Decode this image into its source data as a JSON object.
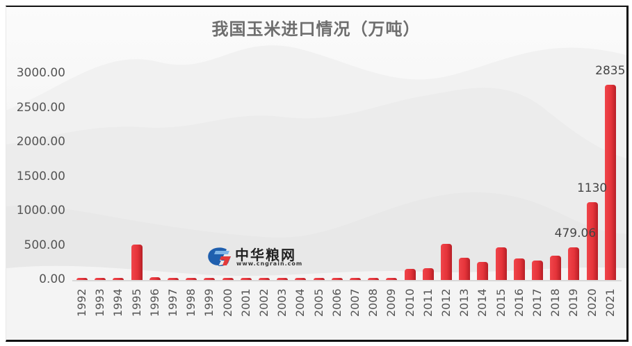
{
  "chart_data": {
    "type": "bar",
    "title": "我国玉米进口情况（万吨）",
    "xlabel": "",
    "ylabel": "",
    "ylim": [
      0,
      3000
    ],
    "yticks": [
      "3000.00",
      "2500.00",
      "2000.00",
      "1500.00",
      "1000.00",
      "500.00",
      "0.00"
    ],
    "grid": false,
    "legend": null,
    "categories": [
      "1992",
      "1993",
      "1994",
      "1995",
      "1996",
      "1997",
      "1998",
      "1999",
      "2000",
      "2001",
      "2002",
      "2003",
      "2004",
      "2005",
      "2006",
      "2007",
      "2008",
      "2009",
      "2010",
      "2011",
      "2012",
      "2013",
      "2014",
      "2015",
      "2016",
      "2017",
      "2018",
      "2019",
      "2020",
      "2021"
    ],
    "values": [
      0,
      0,
      0,
      518,
      44,
      0,
      25,
      7,
      0,
      0,
      0,
      0,
      0,
      0,
      7,
      4,
      5,
      8,
      157,
      175,
      521,
      327,
      260,
      473,
      317,
      283,
      352,
      479.06,
      1130,
      2835
    ],
    "data_labels": [
      {
        "category": "2019",
        "text": "479.06"
      },
      {
        "category": "2020",
        "text": "1130"
      },
      {
        "category": "2021",
        "text": "2835"
      }
    ],
    "bar_color": "#e5343a"
  },
  "watermark": {
    "name": "中华粮网",
    "url": "www.cngrain.com"
  }
}
